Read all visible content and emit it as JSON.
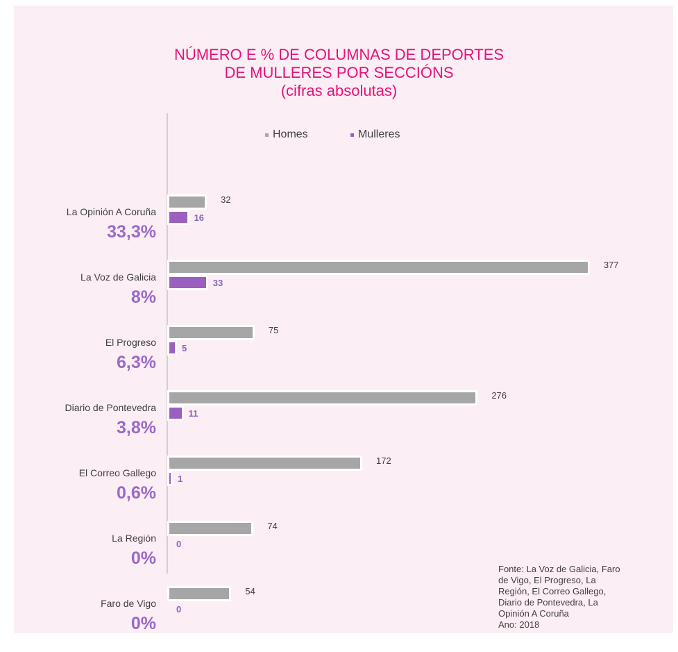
{
  "colors": {
    "background": "#fbeef4",
    "title": "#e6137a",
    "homes": "#a6a6a6",
    "mulleres": "#9b5fc0",
    "percent": "#9b6ac7"
  },
  "chart_data": {
    "type": "bar",
    "orientation": "horizontal",
    "title_lines": [
      "NÚMERO E % DE COLUMNAS DE DEPORTES",
      "DE MULLERES POR SECCIÓNS",
      "(cifras absolutas)"
    ],
    "categories": [
      "La Opinión A Coruña",
      "La Voz de Galicia",
      "El Progreso",
      "Diario de Pontevedra",
      "El Correo Gallego",
      "La Región",
      "Faro de Vigo"
    ],
    "percentages": [
      "33,3%",
      "8%",
      "6,3%",
      "3,8%",
      "0,6%",
      "0%",
      "0%"
    ],
    "series": [
      {
        "name": "Homes",
        "values": [
          32,
          377,
          75,
          276,
          172,
          74,
          54
        ]
      },
      {
        "name": "Mulleres",
        "values": [
          16,
          33,
          5,
          11,
          1,
          0,
          0
        ]
      }
    ],
    "legend_position": "top",
    "grid": false
  },
  "source_text": "Fonte: La Voz de Galicia, Faro\nde Vigo, El Progreso, La\nRegión, El Correo Gallego,\nDiario de Pontevedra, La\nOpinión A Coruña\nAno: 2018"
}
